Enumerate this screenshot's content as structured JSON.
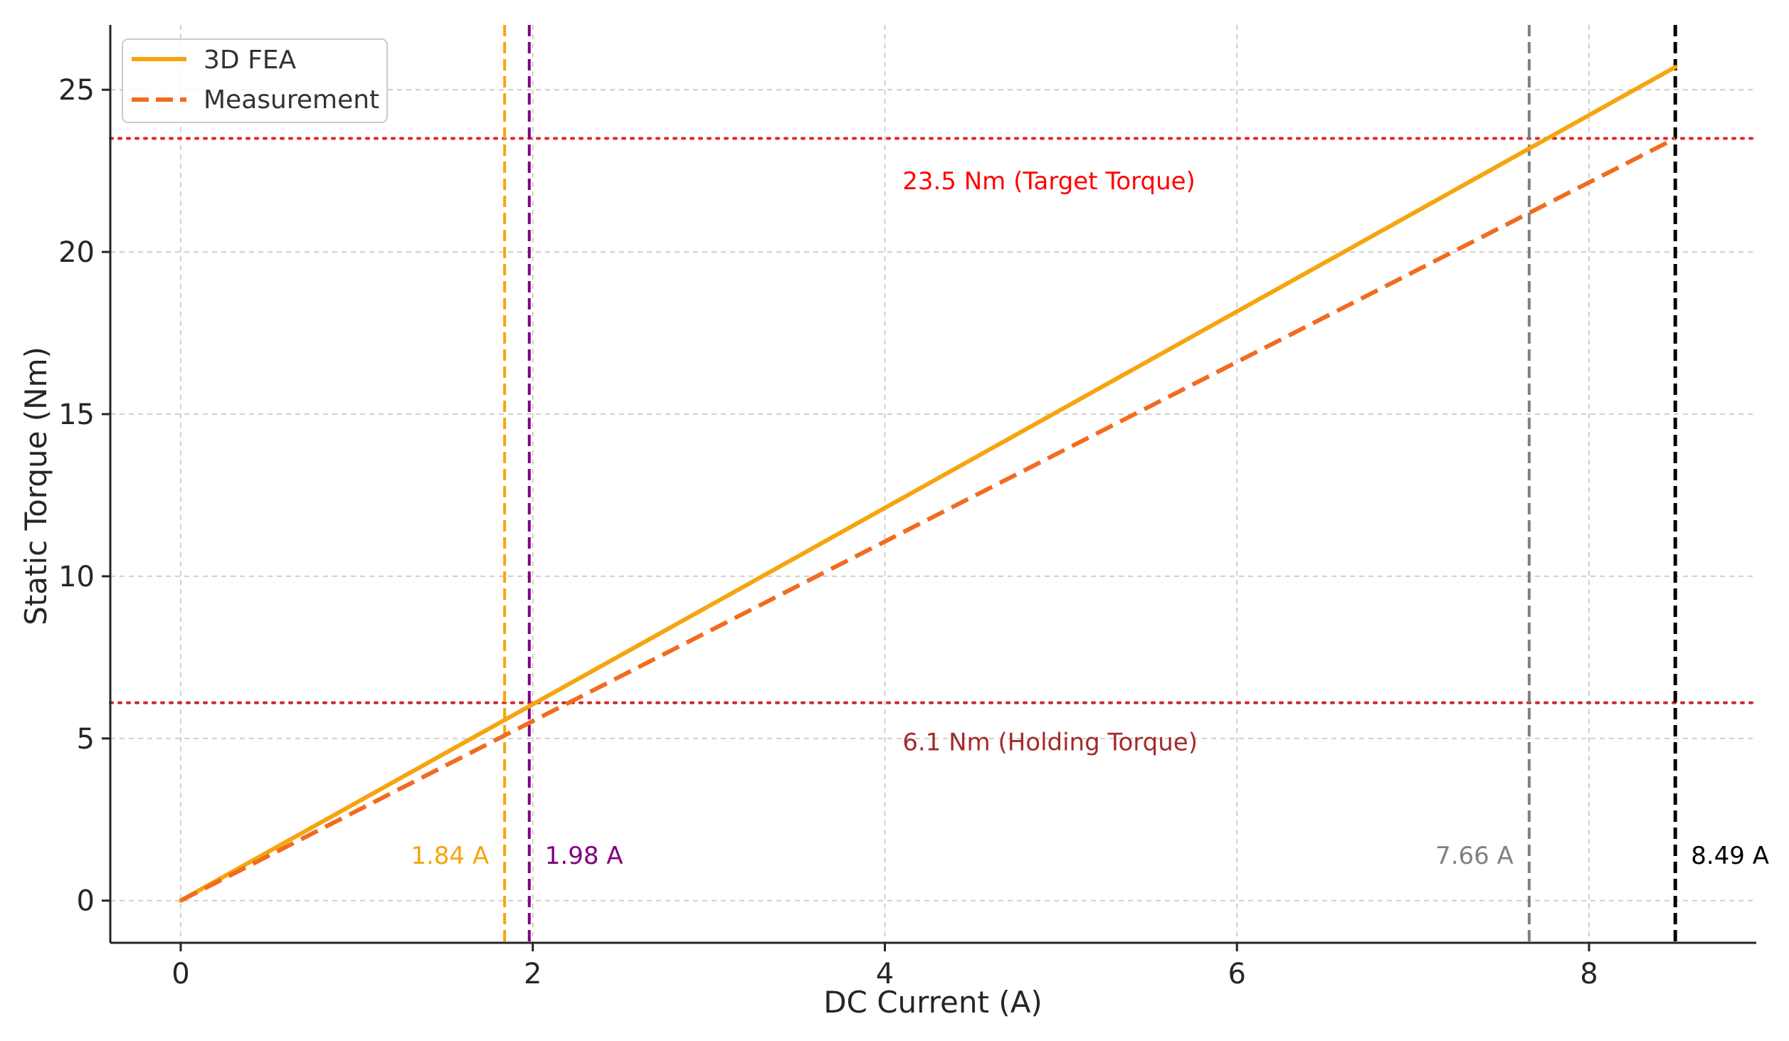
{
  "chart_data": {
    "type": "line",
    "title": "",
    "xlabel": "DC Current (A)",
    "ylabel": "Static Torque (Nm)",
    "xlim": [
      -0.4,
      8.95
    ],
    "ylim": [
      -1.3,
      27.0
    ],
    "xticks": [
      0,
      2,
      4,
      6,
      8
    ],
    "yticks": [
      0,
      5,
      10,
      15,
      20,
      25
    ],
    "grid": true,
    "legend_position": "top-left",
    "series": [
      {
        "name": "3D FEA",
        "style": "solid",
        "color": "#f5a50f",
        "x": [
          0,
          8.49
        ],
        "y": [
          0,
          25.7
        ]
      },
      {
        "name": "Measurement",
        "style": "dashed",
        "color": "#f26b1f",
        "x": [
          0,
          8.49
        ],
        "y": [
          0,
          23.5
        ]
      }
    ],
    "hlines": [
      {
        "y": 23.5,
        "color": "#e8242b",
        "label": "23.5 Nm (Target Torque)",
        "label_color": "#ff0000",
        "label_x": 4.1,
        "label_y": 22.2
      },
      {
        "y": 6.1,
        "color": "#c8282d",
        "label": "6.1 Nm (Holding Torque)",
        "label_color": "#a52a2a",
        "label_x": 4.1,
        "label_y": 4.9
      }
    ],
    "vlines": [
      {
        "x": 1.84,
        "color": "#f5a50f",
        "label": "1.84 A",
        "label_side": "left"
      },
      {
        "x": 1.98,
        "color": "#800080",
        "label": "1.98 A",
        "label_side": "right"
      },
      {
        "x": 7.66,
        "color": "#808080",
        "label": "7.66 A",
        "label_side": "left"
      },
      {
        "x": 8.49,
        "color": "#000000",
        "label": "8.49 A",
        "label_side": "right"
      }
    ],
    "vline_label_y": 1.4
  }
}
